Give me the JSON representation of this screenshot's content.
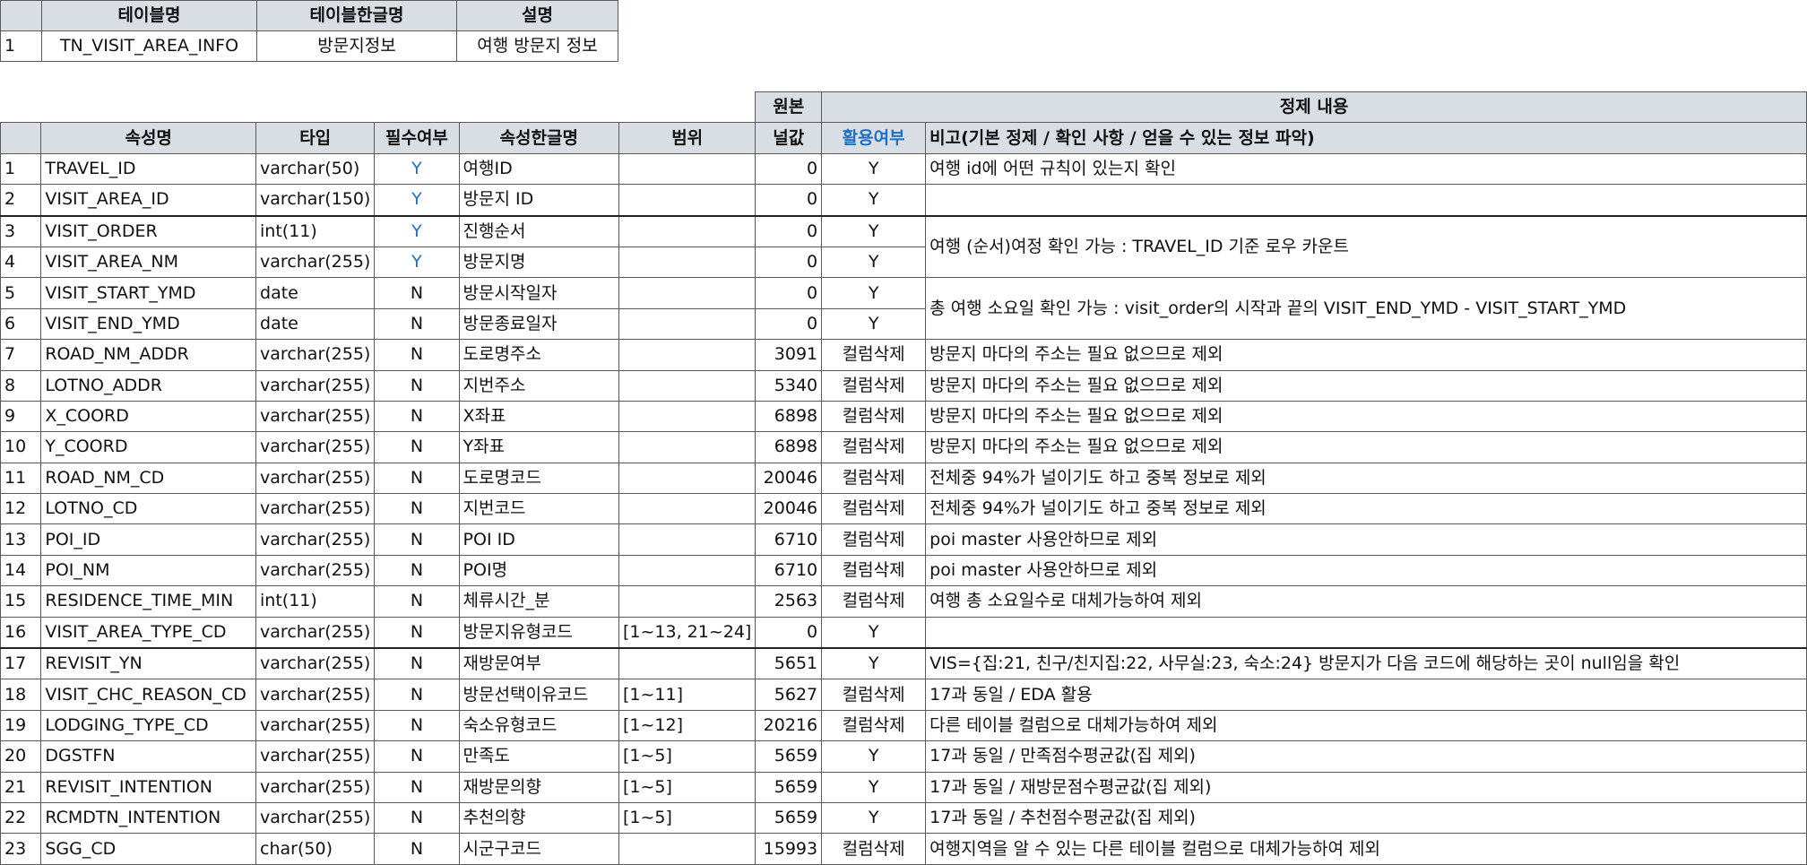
{
  "meta": {
    "headers": [
      "",
      "테이블명",
      "테이블한글명",
      "설명"
    ],
    "row": [
      "1",
      "TN_VISIT_AREA_INFO",
      "방문지정보",
      "여행 방문지 정보"
    ]
  },
  "attrs": {
    "group_headers": {
      "original": "원본",
      "refined": "정제 내용"
    },
    "headers": [
      "",
      "속성명",
      "타입",
      "필수여부",
      "속성한글명",
      "범위",
      "널값",
      "활용여부",
      "비고(기본 정제 / 확인 사항 / 얻을 수 있는 정보 파악)"
    ],
    "rows": [
      {
        "no": "1",
        "name": "TRAVEL_ID",
        "type": "varchar(50)",
        "req": "Y",
        "kname": "여행ID",
        "range": "",
        "nulls": "0",
        "use": "Y",
        "note": "여행 id에 어떤 규칙이 있는지 확인"
      },
      {
        "no": "2",
        "name": "VISIT_AREA_ID",
        "type": "varchar(150)",
        "req": "Y",
        "kname": "방문지 ID",
        "range": "",
        "nulls": "0",
        "use": "Y",
        "note": ""
      },
      {
        "no": "3",
        "name": "VISIT_ORDER",
        "type": "int(11)",
        "req": "Y",
        "kname": "진행순서",
        "range": "",
        "nulls": "0",
        "use": "Y",
        "note": "여행 (순서)여정 확인 가능 : TRAVEL_ID 기준 로우 카운트"
      },
      {
        "no": "4",
        "name": "VISIT_AREA_NM",
        "type": "varchar(255)",
        "req": "Y",
        "kname": "방문지명",
        "range": "",
        "nulls": "0",
        "use": "Y",
        "note": ""
      },
      {
        "no": "5",
        "name": "VISIT_START_YMD",
        "type": "date",
        "req": "N",
        "kname": "방문시작일자",
        "range": "",
        "nulls": "0",
        "use": "Y",
        "note": "총 여행 소요일 확인 가능 : visit_order의 시작과 끝의 VISIT_END_YMD - VISIT_START_YMD"
      },
      {
        "no": "6",
        "name": "VISIT_END_YMD",
        "type": "date",
        "req": "N",
        "kname": "방문종료일자",
        "range": "",
        "nulls": "0",
        "use": "Y",
        "note": ""
      },
      {
        "no": "7",
        "name": "ROAD_NM_ADDR",
        "type": "varchar(255)",
        "req": "N",
        "kname": "도로명주소",
        "range": "",
        "nulls": "3091",
        "use": "컬럼삭제",
        "note": "방문지 마다의 주소는 필요 없으므로 제외"
      },
      {
        "no": "8",
        "name": "LOTNO_ADDR",
        "type": "varchar(255)",
        "req": "N",
        "kname": "지번주소",
        "range": "",
        "nulls": "5340",
        "use": "컬럼삭제",
        "note": "방문지 마다의 주소는 필요 없으므로 제외"
      },
      {
        "no": "9",
        "name": "X_COORD",
        "type": "varchar(255)",
        "req": "N",
        "kname": "X좌표",
        "range": "",
        "nulls": "6898",
        "use": "컬럼삭제",
        "note": "방문지 마다의 주소는 필요 없으므로 제외"
      },
      {
        "no": "10",
        "name": "Y_COORD",
        "type": "varchar(255)",
        "req": "N",
        "kname": "Y좌표",
        "range": "",
        "nulls": "6898",
        "use": "컬럼삭제",
        "note": "방문지 마다의 주소는 필요 없으므로 제외"
      },
      {
        "no": "11",
        "name": "ROAD_NM_CD",
        "type": "varchar(255)",
        "req": "N",
        "kname": "도로명코드",
        "range": "",
        "nulls": "20046",
        "use": "컬럼삭제",
        "note": "전체중 94%가 널이기도 하고 중복 정보로 제외"
      },
      {
        "no": "12",
        "name": "LOTNO_CD",
        "type": "varchar(255)",
        "req": "N",
        "kname": "지번코드",
        "range": "",
        "nulls": "20046",
        "use": "컬럼삭제",
        "note": "전체중 94%가 널이기도 하고 중복 정보로 제외"
      },
      {
        "no": "13",
        "name": "POI_ID",
        "type": "varchar(255)",
        "req": "N",
        "kname": "POI ID",
        "range": "",
        "nulls": "6710",
        "use": "컬럼삭제",
        "note": "poi master 사용안하므로 제외"
      },
      {
        "no": "14",
        "name": "POI_NM",
        "type": "varchar(255)",
        "req": "N",
        "kname": "POI명",
        "range": "",
        "nulls": "6710",
        "use": "컬럼삭제",
        "note": "poi master 사용안하므로 제외"
      },
      {
        "no": "15",
        "name": "RESIDENCE_TIME_MIN",
        "type": "int(11)",
        "req": "N",
        "kname": "체류시간_분",
        "range": "",
        "nulls": "2563",
        "use": "컬럼삭제",
        "note": "여행 총 소요일수로 대체가능하여 제외"
      },
      {
        "no": "16",
        "name": "VISIT_AREA_TYPE_CD",
        "type": "varchar(255)",
        "req": "N",
        "kname": "방문지유형코드",
        "range": "[1~13, 21~24]",
        "nulls": "0",
        "use": "Y",
        "note": ""
      },
      {
        "no": "17",
        "name": "REVISIT_YN",
        "type": "varchar(255)",
        "req": "N",
        "kname": "재방문여부",
        "range": "",
        "nulls": "5651",
        "use": "Y",
        "note": "VIS={집:21, 친구/친지집:22, 사무실:23, 숙소:24} 방문지가 다음 코드에 해당하는 곳이 null임을 확인"
      },
      {
        "no": "18",
        "name": "VISIT_CHC_REASON_CD",
        "type": "varchar(255)",
        "req": "N",
        "kname": "방문선택이유코드",
        "range": "[1~11]",
        "nulls": "5627",
        "use": "컬럼삭제",
        "note": "17과 동일 / EDA 활용"
      },
      {
        "no": "19",
        "name": "LODGING_TYPE_CD",
        "type": "varchar(255)",
        "req": "N",
        "kname": "숙소유형코드",
        "range": "[1~12]",
        "nulls": "20216",
        "use": "컬럼삭제",
        "note": "다른 테이블 컬럼으로 대체가능하여 제외"
      },
      {
        "no": "20",
        "name": "DGSTFN",
        "type": "varchar(255)",
        "req": "N",
        "kname": "만족도",
        "range": "[1~5]",
        "nulls": "5659",
        "use": "Y",
        "note": "17과 동일 / 만족점수평균값(집 제외)"
      },
      {
        "no": "21",
        "name": "REVISIT_INTENTION",
        "type": "varchar(255)",
        "req": "N",
        "kname": "재방문의향",
        "range": "[1~5]",
        "nulls": "5659",
        "use": "Y",
        "note": "17과 동일 / 재방문점수평균값(집 제외)"
      },
      {
        "no": "22",
        "name": "RCMDTN_INTENTION",
        "type": "varchar(255)",
        "req": "N",
        "kname": "추천의향",
        "range": "[1~5]",
        "nulls": "5659",
        "use": "Y",
        "note": "17과 동일 / 추천점수평균값(집 제외)"
      },
      {
        "no": "23",
        "name": "SGG_CD",
        "type": "char(50)",
        "req": "N",
        "kname": "시군구코드",
        "range": "",
        "nulls": "15993",
        "use": "컬럼삭제",
        "note": "여행지역을 알 수 있는 다른 테이블 컬럼으로 대체가능하여 제외"
      }
    ]
  }
}
